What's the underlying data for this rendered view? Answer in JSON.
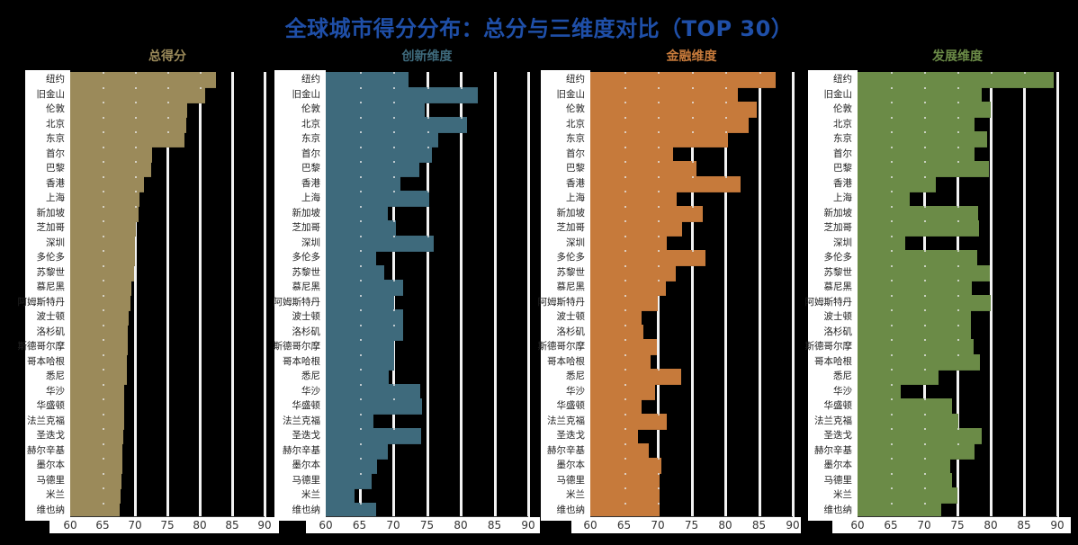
{
  "title": "全球城市得分分布：总分与三维度对比（TOP 30）",
  "colors": {
    "title": "#1f4fa8",
    "total": "#9b8a5a",
    "innovation": "#3e6a7c",
    "finance": "#c67a3b",
    "development": "#6b8b47"
  },
  "panels": [
    {
      "key": "total",
      "label": "总得分"
    },
    {
      "key": "innovation",
      "label": "创新维度"
    },
    {
      "key": "finance",
      "label": "金融维度"
    },
    {
      "key": "development",
      "label": "发展维度"
    }
  ],
  "chart_data": {
    "type": "bar",
    "orientation": "horizontal",
    "title": "全球城市得分分布：总分与三维度对比（TOP 30）",
    "xlim": [
      60,
      90
    ],
    "xticks": [
      60,
      65,
      70,
      75,
      80,
      85,
      90
    ],
    "grid": true,
    "categories": [
      "纽约",
      "旧金山",
      "伦敦",
      "北京",
      "东京",
      "首尔",
      "巴黎",
      "香港",
      "上海",
      "新加坡",
      "芝加哥",
      "深圳",
      "多伦多",
      "苏黎世",
      "慕尼黑",
      "阿姆斯特丹",
      "波士顿",
      "洛杉矶",
      "斯德哥尔摩",
      "哥本哈根",
      "悉尼",
      "华沙",
      "华盛顿",
      "法兰克福",
      "圣迭戈",
      "赫尔辛基",
      "墨尔本",
      "马德里",
      "米兰",
      "维也纳"
    ],
    "series": [
      {
        "name": "总得分",
        "values": [
          82.5,
          80.8,
          78.0,
          77.9,
          77.6,
          72.6,
          72.5,
          71.4,
          70.7,
          70.5,
          70.1,
          70.0,
          70.0,
          69.9,
          69.4,
          69.3,
          69.0,
          68.9,
          68.9,
          68.8,
          68.7,
          68.4,
          68.3,
          68.3,
          68.2,
          68.1,
          68.0,
          67.9,
          67.8,
          67.7
        ]
      },
      {
        "name": "创新维度",
        "values": [
          72.3,
          82.5,
          74.7,
          80.9,
          76.6,
          75.7,
          73.8,
          71.1,
          75.3,
          69.2,
          70.4,
          76.0,
          67.4,
          68.6,
          71.4,
          70.1,
          71.5,
          71.4,
          70.1,
          70.1,
          69.3,
          74.0,
          74.3,
          67.0,
          74.1,
          69.2,
          67.6,
          66.8,
          64.3,
          67.5
        ]
      },
      {
        "name": "金融维度",
        "values": [
          87.5,
          81.8,
          84.6,
          83.4,
          80.4,
          72.2,
          75.7,
          82.3,
          72.8,
          76.7,
          73.6,
          71.3,
          77.0,
          72.7,
          71.2,
          70.0,
          67.6,
          67.8,
          69.8,
          68.9,
          73.5,
          69.6,
          67.6,
          71.3,
          67.1,
          68.7,
          70.5,
          70.3,
          70.3,
          70.3
        ]
      },
      {
        "name": "发展维度",
        "values": [
          89.5,
          78.7,
          80.0,
          77.6,
          79.4,
          77.5,
          79.7,
          71.8,
          67.9,
          78.1,
          78.2,
          67.2,
          78.0,
          79.8,
          77.1,
          80.0,
          77.0,
          77.0,
          77.4,
          78.4,
          72.1,
          66.5,
          74.2,
          75.1,
          78.6,
          77.6,
          73.9,
          74.2,
          75.0,
          72.6
        ]
      }
    ]
  }
}
